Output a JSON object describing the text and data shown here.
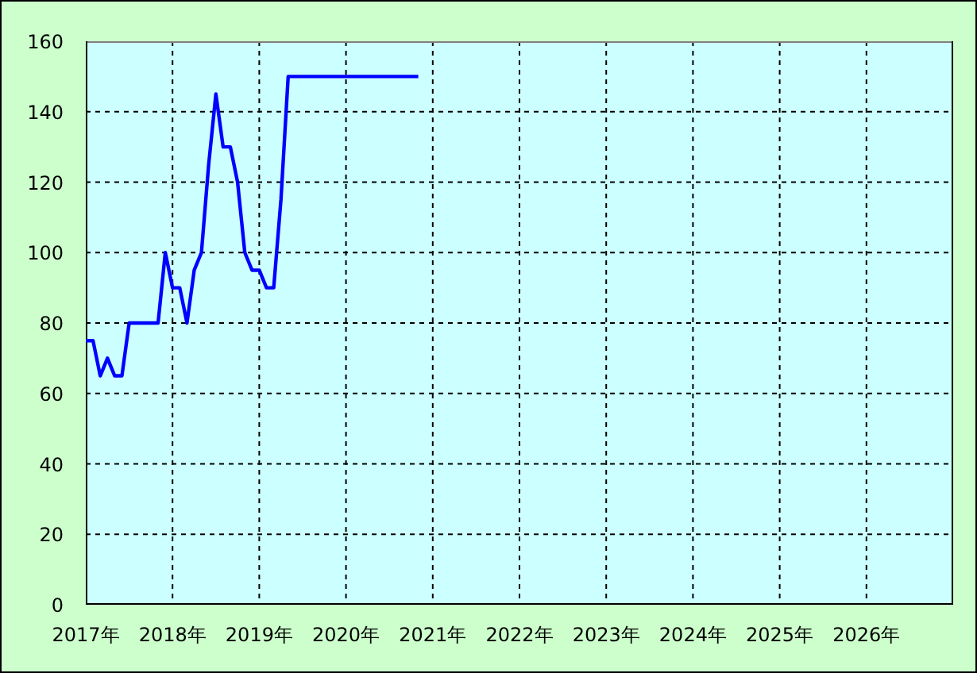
{
  "chart_data": {
    "type": "line",
    "x": [
      "2017-01",
      "2017-02",
      "2017-03",
      "2017-04",
      "2017-05",
      "2017-06",
      "2017-07",
      "2017-08",
      "2017-09",
      "2017-10",
      "2017-11",
      "2017-12",
      "2018-01",
      "2018-02",
      "2018-03",
      "2018-04",
      "2018-05",
      "2018-06",
      "2018-07",
      "2018-08",
      "2018-09",
      "2018-10",
      "2018-11",
      "2018-12",
      "2019-01",
      "2019-02",
      "2019-03",
      "2019-04",
      "2019-05",
      "2019-06",
      "2019-07",
      "2019-08",
      "2019-09",
      "2019-10",
      "2019-11",
      "2019-12",
      "2020-01",
      "2020-02",
      "2020-03",
      "2020-04",
      "2020-05",
      "2020-06",
      "2020-07",
      "2020-08",
      "2020-09",
      "2020-10",
      "2020-11"
    ],
    "series": [
      {
        "color": "#0000ff",
        "values": [
          75,
          75,
          65,
          70,
          65,
          65,
          80,
          80,
          80,
          80,
          80,
          100,
          90,
          90,
          80,
          95,
          100,
          125,
          145,
          130,
          130,
          120,
          100,
          95,
          95,
          90,
          90,
          115,
          150,
          150,
          150,
          150,
          150,
          150,
          150,
          150,
          150,
          150,
          150,
          150,
          150,
          150,
          150,
          150,
          150,
          150,
          150
        ]
      }
    ],
    "xlim": [
      "2017",
      "2027"
    ],
    "xticks": [
      {
        "value": "2017",
        "label": "2017年"
      },
      {
        "value": "2018",
        "label": "2018年"
      },
      {
        "value": "2019",
        "label": "2019年"
      },
      {
        "value": "2020",
        "label": "2020年"
      },
      {
        "value": "2021",
        "label": "2021年"
      },
      {
        "value": "2022",
        "label": "2022年"
      },
      {
        "value": "2023",
        "label": "2023年"
      },
      {
        "value": "2024",
        "label": "2024年"
      },
      {
        "value": "2025",
        "label": "2025年"
      },
      {
        "value": "2026",
        "label": "2026年"
      }
    ],
    "ylim": [
      0,
      160
    ],
    "yticks": [
      0,
      20,
      40,
      60,
      80,
      100,
      120,
      140,
      160
    ],
    "grid": true
  }
}
